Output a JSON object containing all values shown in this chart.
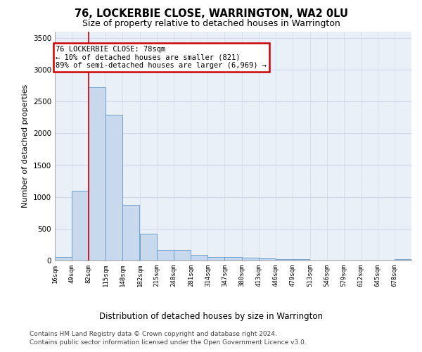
{
  "title": "76, LOCKERBIE CLOSE, WARRINGTON, WA2 0LU",
  "subtitle": "Size of property relative to detached houses in Warrington",
  "xlabel": "Distribution of detached houses by size in Warrington",
  "ylabel": "Number of detached properties",
  "bar_color": "#c8d9ee",
  "bar_edgecolor": "#6aa0cc",
  "grid_color": "#d0d8e8",
  "background_color": "#eaf0f8",
  "annotation_text_line1": "76 LOCKERBIE CLOSE: 78sqm",
  "annotation_text_line2": "← 10% of detached houses are smaller (821)",
  "annotation_text_line3": "89% of semi-detached houses are larger (6,969) →",
  "annotation_box_color": "#ffffff",
  "annotation_box_edgecolor": "#cc0000",
  "vline_color": "#cc0000",
  "categories": [
    "16sqm",
    "49sqm",
    "82sqm",
    "115sqm",
    "148sqm",
    "182sqm",
    "215sqm",
    "248sqm",
    "281sqm",
    "314sqm",
    "347sqm",
    "380sqm",
    "413sqm",
    "446sqm",
    "479sqm",
    "513sqm",
    "546sqm",
    "579sqm",
    "612sqm",
    "645sqm",
    "678sqm"
  ],
  "bin_left_edges": [
    16,
    49,
    82,
    115,
    148,
    182,
    215,
    248,
    281,
    314,
    347,
    380,
    413,
    446,
    479,
    513,
    546,
    579,
    612,
    645,
    678
  ],
  "bin_width": 33,
  "values": [
    55,
    1100,
    2730,
    2290,
    870,
    420,
    170,
    165,
    90,
    60,
    50,
    40,
    30,
    25,
    20,
    5,
    5,
    5,
    5,
    5,
    20
  ],
  "vline_x_bin_index": 2,
  "ylim": [
    0,
    3600
  ],
  "yticks": [
    0,
    500,
    1000,
    1500,
    2000,
    2500,
    3000,
    3500
  ],
  "footer_line1": "Contains HM Land Registry data © Crown copyright and database right 2024.",
  "footer_line2": "Contains public sector information licensed under the Open Government Licence v3.0.",
  "footer_fontsize": 6.5,
  "title_fontsize": 10.5,
  "subtitle_fontsize": 9,
  "xlabel_fontsize": 8.5,
  "ylabel_fontsize": 8
}
